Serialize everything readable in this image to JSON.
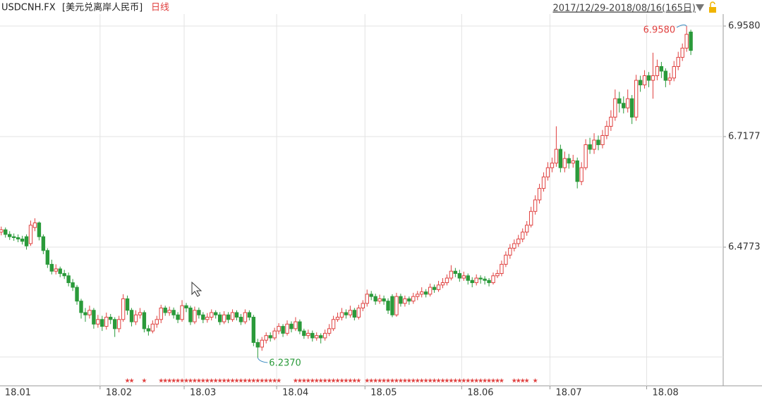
{
  "header": {
    "symbol": "USDCNH.FX",
    "name": "[美元兑离岸人民币]",
    "period": "日线",
    "range": "2017/12/29-2018/08/16(165日)"
  },
  "chart_data": {
    "type": "candlestick",
    "up_color": "#e0403f",
    "down_color": "#2a9a3a",
    "xlim": [
      -0.3,
      171.7
    ],
    "ylim": [
      6.1804,
      6.984
    ],
    "yticks": [
      {
        "value": 6.958,
        "label": "6.9580"
      },
      {
        "value": 6.7177,
        "label": "6.7177"
      },
      {
        "value": 6.4773,
        "label": "6.4773"
      }
    ],
    "xticks": [
      {
        "value": -0.5,
        "label": "18.01"
      },
      {
        "value": 23.5,
        "label": "18.02"
      },
      {
        "value": 43.5,
        "label": "18.03"
      },
      {
        "value": 65.5,
        "label": "18.04"
      },
      {
        "value": 86.5,
        "label": "18.05"
      },
      {
        "value": 109.5,
        "label": "18.06"
      },
      {
        "value": 130.5,
        "label": "18.07"
      },
      {
        "value": 153.5,
        "label": "18.08"
      }
    ],
    "grid": true,
    "max_label": "6.9580",
    "min_label": "6.2370",
    "marker": "★",
    "marked_candles": [
      [
        30,
        31
      ],
      [
        34,
        34
      ],
      [
        38,
        66
      ],
      [
        70,
        85
      ],
      [
        87,
        119
      ],
      [
        122,
        125
      ],
      [
        127,
        127
      ]
    ],
    "ohlc": [
      [
        6.51,
        6.522,
        6.503,
        6.515
      ],
      [
        6.515,
        6.52,
        6.498,
        6.505
      ],
      [
        6.505,
        6.512,
        6.493,
        6.5
      ],
      [
        6.5,
        6.507,
        6.491,
        6.498
      ],
      [
        6.498,
        6.505,
        6.488,
        6.495
      ],
      [
        6.495,
        6.502,
        6.483,
        6.49
      ],
      [
        6.5,
        6.505,
        6.472,
        6.48
      ],
      [
        6.485,
        6.535,
        6.48,
        6.525
      ],
      [
        6.52,
        6.54,
        6.512,
        6.53
      ],
      [
        6.53,
        6.533,
        6.492,
        6.5
      ],
      [
        6.5,
        6.505,
        6.462,
        6.47
      ],
      [
        6.47,
        6.475,
        6.432,
        6.44
      ],
      [
        6.44,
        6.45,
        6.418,
        6.425
      ],
      [
        6.425,
        6.44,
        6.418,
        6.43
      ],
      [
        6.43,
        6.435,
        6.412,
        6.42
      ],
      [
        6.42,
        6.428,
        6.408,
        6.415
      ],
      [
        6.415,
        6.422,
        6.392,
        6.4
      ],
      [
        6.4,
        6.408,
        6.382,
        6.39
      ],
      [
        6.39,
        6.395,
        6.352,
        6.36
      ],
      [
        6.36,
        6.365,
        6.322,
        6.335
      ],
      [
        6.335,
        6.345,
        6.315,
        6.33
      ],
      [
        6.33,
        6.35,
        6.322,
        6.34
      ],
      [
        6.34,
        6.345,
        6.3,
        6.31
      ],
      [
        6.31,
        6.33,
        6.302,
        6.32
      ],
      [
        6.32,
        6.328,
        6.295,
        6.305
      ],
      [
        6.305,
        6.335,
        6.298,
        6.325
      ],
      [
        6.325,
        6.332,
        6.31,
        6.32
      ],
      [
        6.32,
        6.325,
        6.282,
        6.3
      ],
      [
        6.3,
        6.328,
        6.292,
        6.32
      ],
      [
        6.32,
        6.375,
        6.315,
        6.365
      ],
      [
        6.365,
        6.372,
        6.33,
        6.34
      ],
      [
        6.34,
        6.345,
        6.305,
        6.315
      ],
      [
        6.315,
        6.34,
        6.308,
        6.33
      ],
      [
        6.33,
        6.345,
        6.322,
        6.335
      ],
      [
        6.335,
        6.34,
        6.292,
        6.3
      ],
      [
        6.3,
        6.308,
        6.285,
        6.295
      ],
      [
        6.295,
        6.318,
        6.29,
        6.31
      ],
      [
        6.31,
        6.328,
        6.302,
        6.32
      ],
      [
        6.32,
        6.352,
        6.312,
        6.345
      ],
      [
        6.345,
        6.35,
        6.328,
        6.335
      ],
      [
        6.335,
        6.348,
        6.328,
        6.34
      ],
      [
        6.34,
        6.346,
        6.322,
        6.33
      ],
      [
        6.33,
        6.336,
        6.312,
        6.32
      ],
      [
        6.32,
        6.362,
        6.315,
        6.35
      ],
      [
        6.35,
        6.356,
        6.336,
        6.345
      ],
      [
        6.345,
        6.35,
        6.308,
        6.315
      ],
      [
        6.315,
        6.348,
        6.31,
        6.34
      ],
      [
        6.34,
        6.346,
        6.322,
        6.33
      ],
      [
        6.33,
        6.336,
        6.312,
        6.32
      ],
      [
        6.32,
        6.334,
        6.313,
        6.325
      ],
      [
        6.325,
        6.342,
        6.318,
        6.335
      ],
      [
        6.335,
        6.34,
        6.322,
        6.33
      ],
      [
        6.33,
        6.336,
        6.308,
        6.315
      ],
      [
        6.315,
        6.338,
        6.31,
        6.33
      ],
      [
        6.33,
        6.336,
        6.312,
        6.32
      ],
      [
        6.32,
        6.342,
        6.315,
        6.335
      ],
      [
        6.335,
        6.34,
        6.318,
        6.325
      ],
      [
        6.325,
        6.332,
        6.308,
        6.315
      ],
      [
        6.315,
        6.342,
        6.31,
        6.335
      ],
      [
        6.335,
        6.34,
        6.318,
        6.325
      ],
      [
        6.325,
        6.33,
        6.262,
        6.27
      ],
      [
        6.27,
        6.278,
        6.237,
        6.26
      ],
      [
        6.26,
        6.282,
        6.252,
        6.275
      ],
      [
        6.275,
        6.292,
        6.268,
        6.285
      ],
      [
        6.285,
        6.292,
        6.272,
        6.28
      ],
      [
        6.28,
        6.302,
        6.275,
        6.295
      ],
      [
        6.295,
        6.312,
        6.288,
        6.305
      ],
      [
        6.305,
        6.31,
        6.282,
        6.29
      ],
      [
        6.29,
        6.318,
        6.285,
        6.31
      ],
      [
        6.31,
        6.316,
        6.292,
        6.3
      ],
      [
        6.3,
        6.325,
        6.295,
        6.315
      ],
      [
        6.315,
        6.32,
        6.288,
        6.295
      ],
      [
        6.295,
        6.3,
        6.278,
        6.285
      ],
      [
        6.285,
        6.298,
        6.278,
        6.29
      ],
      [
        6.29,
        6.296,
        6.272,
        6.28
      ],
      [
        6.28,
        6.292,
        6.274,
        6.285
      ],
      [
        6.285,
        6.29,
        6.268,
        6.28
      ],
      [
        6.28,
        6.298,
        6.274,
        6.29
      ],
      [
        6.29,
        6.31,
        6.284,
        6.3
      ],
      [
        6.3,
        6.328,
        6.295,
        6.32
      ],
      [
        6.32,
        6.335,
        6.315,
        6.325
      ],
      [
        6.325,
        6.345,
        6.318,
        6.335
      ],
      [
        6.335,
        6.342,
        6.322,
        6.33
      ],
      [
        6.33,
        6.35,
        6.324,
        6.34
      ],
      [
        6.34,
        6.345,
        6.318,
        6.325
      ],
      [
        6.325,
        6.352,
        6.32,
        6.345
      ],
      [
        6.345,
        6.362,
        6.338,
        6.355
      ],
      [
        6.355,
        6.385,
        6.348,
        6.375
      ],
      [
        6.375,
        6.382,
        6.362,
        6.37
      ],
      [
        6.37,
        6.376,
        6.352,
        6.36
      ],
      [
        6.36,
        6.374,
        6.354,
        6.365
      ],
      [
        6.365,
        6.372,
        6.352,
        6.36
      ],
      [
        6.36,
        6.366,
        6.332,
        6.34
      ],
      [
        6.37,
        6.375,
        6.325,
        6.33
      ],
      [
        6.33,
        6.378,
        6.326,
        6.37
      ],
      [
        6.37,
        6.376,
        6.348,
        6.355
      ],
      [
        6.355,
        6.372,
        6.348,
        6.365
      ],
      [
        6.365,
        6.37,
        6.352,
        6.36
      ],
      [
        6.36,
        6.378,
        6.354,
        6.37
      ],
      [
        6.37,
        6.382,
        6.362,
        6.375
      ],
      [
        6.375,
        6.39,
        6.368,
        6.38
      ],
      [
        6.38,
        6.386,
        6.368,
        6.375
      ],
      [
        6.375,
        6.398,
        6.37,
        6.39
      ],
      [
        6.39,
        6.396,
        6.378,
        6.385
      ],
      [
        6.385,
        6.404,
        6.38,
        6.395
      ],
      [
        6.395,
        6.41,
        6.388,
        6.4
      ],
      [
        6.4,
        6.418,
        6.394,
        6.41
      ],
      [
        6.41,
        6.438,
        6.405,
        6.425
      ],
      [
        6.425,
        6.432,
        6.412,
        6.42
      ],
      [
        6.42,
        6.428,
        6.402,
        6.41
      ],
      [
        6.41,
        6.424,
        6.404,
        6.415
      ],
      [
        6.415,
        6.42,
        6.396,
        6.405
      ],
      [
        6.405,
        6.412,
        6.39,
        6.4
      ],
      [
        6.4,
        6.418,
        6.394,
        6.41
      ],
      [
        6.41,
        6.416,
        6.398,
        6.408
      ],
      [
        6.408,
        6.414,
        6.396,
        6.405
      ],
      [
        6.405,
        6.41,
        6.392,
        6.4
      ],
      [
        6.4,
        6.422,
        6.396,
        6.415
      ],
      [
        6.415,
        6.428,
        6.41,
        6.42
      ],
      [
        6.42,
        6.448,
        6.414,
        6.44
      ],
      [
        6.44,
        6.468,
        6.434,
        6.46
      ],
      [
        6.46,
        6.484,
        6.452,
        6.475
      ],
      [
        6.475,
        6.494,
        6.468,
        6.485
      ],
      [
        6.485,
        6.504,
        6.478,
        6.495
      ],
      [
        6.495,
        6.518,
        6.488,
        6.51
      ],
      [
        6.51,
        6.534,
        6.502,
        6.525
      ],
      [
        6.525,
        6.565,
        6.52,
        6.555
      ],
      [
        6.555,
        6.59,
        6.548,
        6.58
      ],
      [
        6.58,
        6.615,
        6.572,
        6.605
      ],
      [
        6.605,
        6.64,
        6.598,
        6.63
      ],
      [
        6.63,
        6.662,
        6.622,
        6.65
      ],
      [
        6.65,
        6.672,
        6.64,
        6.66
      ],
      [
        6.66,
        6.74,
        6.652,
        6.69
      ],
      [
        6.69,
        6.7,
        6.64,
        6.65
      ],
      [
        6.65,
        6.685,
        6.64,
        6.67
      ],
      [
        6.67,
        6.68,
        6.648,
        6.66
      ],
      [
        6.66,
        6.678,
        6.65,
        6.665
      ],
      [
        6.665,
        6.672,
        6.605,
        6.62
      ],
      [
        6.62,
        6.662,
        6.612,
        6.65
      ],
      [
        6.65,
        6.712,
        6.645,
        6.7
      ],
      [
        6.7,
        6.715,
        6.68,
        6.69
      ],
      [
        6.69,
        6.725,
        6.68,
        6.71
      ],
      [
        6.71,
        6.72,
        6.688,
        6.7
      ],
      [
        6.7,
        6.732,
        6.692,
        6.72
      ],
      [
        6.72,
        6.752,
        6.712,
        6.74
      ],
      [
        6.74,
        6.775,
        6.73,
        6.76
      ],
      [
        6.76,
        6.82,
        6.752,
        6.8
      ],
      [
        6.8,
        6.815,
        6.77,
        6.79
      ],
      [
        6.79,
        6.805,
        6.768,
        6.78
      ],
      [
        6.78,
        6.82,
        6.77,
        6.8
      ],
      [
        6.8,
        6.808,
        6.745,
        6.76
      ],
      [
        6.76,
        6.852,
        6.752,
        6.84
      ],
      [
        6.84,
        6.85,
        6.815,
        6.83
      ],
      [
        6.83,
        6.862,
        6.822,
        6.85
      ],
      [
        6.85,
        6.858,
        6.825,
        6.84
      ],
      [
        6.84,
        6.9,
        6.8,
        6.85
      ],
      [
        6.85,
        6.885,
        6.84,
        6.87
      ],
      [
        6.87,
        6.88,
        6.845,
        6.86
      ],
      [
        6.86,
        6.866,
        6.825,
        6.84
      ],
      [
        6.84,
        6.856,
        6.83,
        6.845
      ],
      [
        6.845,
        6.882,
        6.838,
        6.87
      ],
      [
        6.87,
        6.902,
        6.862,
        6.89
      ],
      [
        6.89,
        6.92,
        6.882,
        6.91
      ],
      [
        6.91,
        6.958,
        6.902,
        6.94
      ],
      [
        6.945,
        6.95,
        6.895,
        6.905
      ]
    ]
  }
}
